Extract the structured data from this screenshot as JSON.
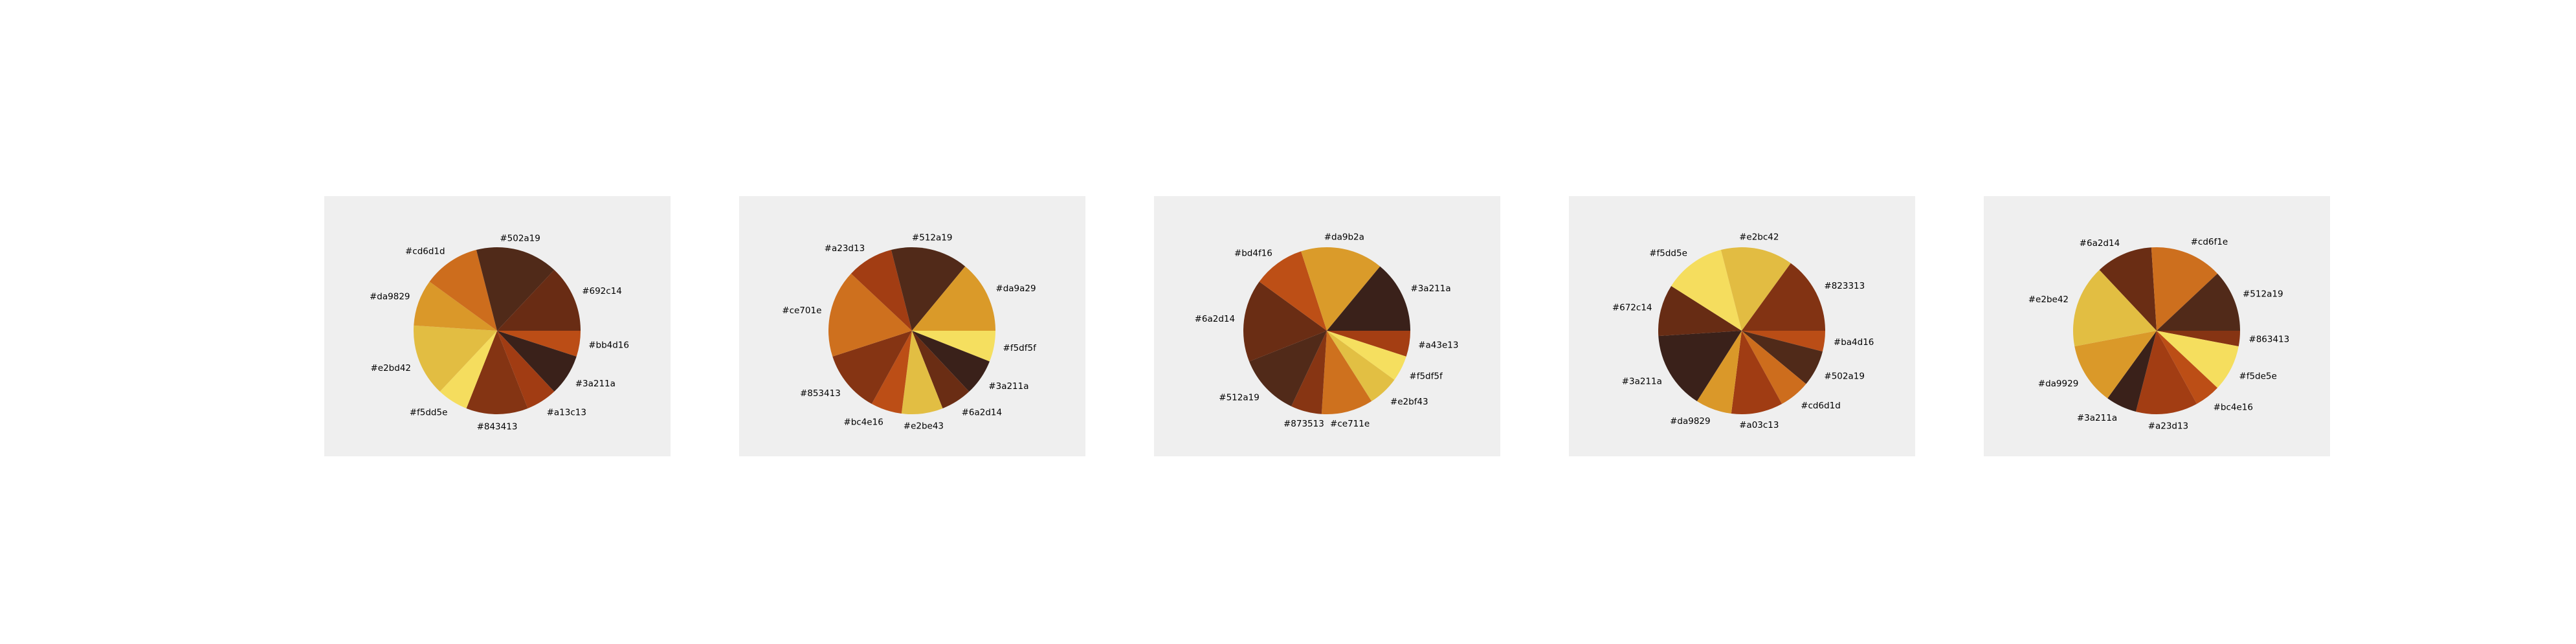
{
  "chart_data": [
    {
      "type": "pie",
      "slices": [
        {
          "label": "#bb4d16",
          "color": "#bb4d16",
          "value": 5
        },
        {
          "label": "#3a211a",
          "color": "#3a211a",
          "value": 8
        },
        {
          "label": "#a13c13",
          "color": "#a13c13",
          "value": 6
        },
        {
          "label": "#843413",
          "color": "#843413",
          "value": 12
        },
        {
          "label": "#f5dd5e",
          "color": "#f5dd5e",
          "value": 6
        },
        {
          "label": "#e2bd42",
          "color": "#e2bd42",
          "value": 14
        },
        {
          "label": "#da9829",
          "color": "#da9829",
          "value": 9
        },
        {
          "label": "#cd6d1d",
          "color": "#cd6d1d",
          "value": 11
        },
        {
          "label": "#502a19",
          "color": "#502a19",
          "value": 16
        },
        {
          "label": "#692c14",
          "color": "#692c14",
          "value": 13
        }
      ]
    },
    {
      "type": "pie",
      "slices": [
        {
          "label": "#f5df5f",
          "color": "#f5df5f",
          "value": 6
        },
        {
          "label": "#3a211a",
          "color": "#3a211a",
          "value": 7
        },
        {
          "label": "#6a2d14",
          "color": "#6a2d14",
          "value": 6
        },
        {
          "label": "#e2be43",
          "color": "#e2be43",
          "value": 8
        },
        {
          "label": "#bc4e16",
          "color": "#bc4e16",
          "value": 6
        },
        {
          "label": "#853413",
          "color": "#853413",
          "value": 12
        },
        {
          "label": "#ce701e",
          "color": "#ce701e",
          "value": 17
        },
        {
          "label": "#a23d13",
          "color": "#a23d13",
          "value": 9
        },
        {
          "label": "#512a19",
          "color": "#512a19",
          "value": 15
        },
        {
          "label": "#da9a29",
          "color": "#da9a29",
          "value": 14
        }
      ]
    },
    {
      "type": "pie",
      "slices": [
        {
          "label": "#a43e13",
          "color": "#a43e13",
          "value": 5
        },
        {
          "label": "#f5df5f",
          "color": "#f5df5f",
          "value": 5
        },
        {
          "label": "#e2bf43",
          "color": "#e2bf43",
          "value": 6
        },
        {
          "label": "#ce711e",
          "color": "#ce711e",
          "value": 10
        },
        {
          "label": "#873513",
          "color": "#873513",
          "value": 6
        },
        {
          "label": "#512a19",
          "color": "#512a19",
          "value": 12
        },
        {
          "label": "#6a2d14",
          "color": "#6a2d14",
          "value": 16
        },
        {
          "label": "#bd4f16",
          "color": "#bd4f16",
          "value": 10
        },
        {
          "label": "#da9b2a",
          "color": "#da9b2a",
          "value": 16
        },
        {
          "label": "#3a211a",
          "color": "#3a211a",
          "value": 14
        }
      ]
    },
    {
      "type": "pie",
      "slices": [
        {
          "label": "#ba4d16",
          "color": "#ba4d16",
          "value": 4
        },
        {
          "label": "#502a19",
          "color": "#502a19",
          "value": 7
        },
        {
          "label": "#cd6d1d",
          "color": "#cd6d1d",
          "value": 6
        },
        {
          "label": "#a03c13",
          "color": "#a03c13",
          "value": 10
        },
        {
          "label": "#da9829",
          "color": "#da9829",
          "value": 7
        },
        {
          "label": "#3a211a",
          "color": "#3a211a",
          "value": 15
        },
        {
          "label": "#672c14",
          "color": "#672c14",
          "value": 10
        },
        {
          "label": "#f5dd5e",
          "color": "#f5dd5e",
          "value": 12
        },
        {
          "label": "#e2bc42",
          "color": "#e2bc42",
          "value": 14
        },
        {
          "label": "#823313",
          "color": "#823313",
          "value": 15
        }
      ]
    },
    {
      "type": "pie",
      "slices": [
        {
          "label": "#863413",
          "color": "#863413",
          "value": 3
        },
        {
          "label": "#f5de5e",
          "color": "#f5de5e",
          "value": 9
        },
        {
          "label": "#bc4e16",
          "color": "#bc4e16",
          "value": 5
        },
        {
          "label": "#a23d13",
          "color": "#a23d13",
          "value": 12
        },
        {
          "label": "#3a211a",
          "color": "#3a211a",
          "value": 6
        },
        {
          "label": "#da9929",
          "color": "#da9929",
          "value": 12
        },
        {
          "label": "#e2be42",
          "color": "#e2be42",
          "value": 16
        },
        {
          "label": "#6a2d14",
          "color": "#6a2d14",
          "value": 11
        },
        {
          "label": "#cd6f1e",
          "color": "#cd6f1e",
          "value": 14
        },
        {
          "label": "#512a19",
          "color": "#512a19",
          "value": 12
        }
      ]
    }
  ]
}
